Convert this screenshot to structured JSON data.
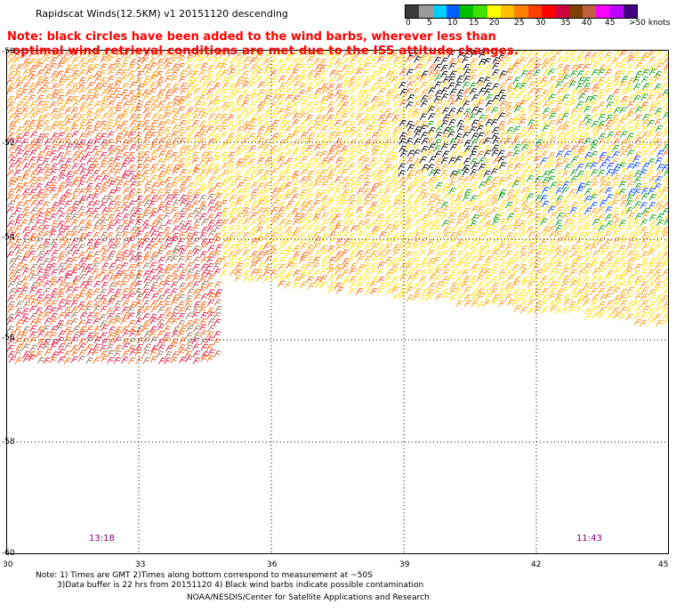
{
  "title": "Rapidscat Winds(12.5KM) v1 20151120 descending",
  "note": {
    "line1": "Note: black circles have been added to the wind barbs, wherever less than",
    "line2": "optimal wind retrieval conditions are met due to the ISS attitude changes."
  },
  "colorbar": {
    "colors": [
      "#3a3a3a",
      "#9a9a9a",
      "#00d0ff",
      "#0060ff",
      "#00c000",
      "#40e000",
      "#ffff00",
      "#ffc000",
      "#ff8000",
      "#ff4000",
      "#ff0000",
      "#d00040",
      "#804000",
      "#c06040",
      "#ff00ff",
      "#c000ff",
      "#400080"
    ],
    "labels": [
      "0",
      "5",
      "10",
      "15",
      "20",
      "25",
      "30",
      "35",
      "40",
      "45",
      ">50 knots"
    ]
  },
  "map": {
    "lon_range": [
      30,
      45
    ],
    "lat_range": [
      -60,
      -50
    ],
    "x_tick_labels": [
      "30",
      "33",
      "36",
      "39",
      "42",
      "45"
    ],
    "y_tick_labels": [
      "-50",
      "-52",
      "-54",
      "-56",
      "-58",
      "-60"
    ],
    "pass_times": [
      "13:18",
      "11:43"
    ],
    "barb_colors": {
      "speed_25_30": "#ffe000",
      "speed_30_35": "#ff9a00",
      "speed_35_40": "#ff5a00",
      "speed_40_45": "#e0103a",
      "speed_45_plus": "#9a6a4a",
      "speed_15_20": "#009a00",
      "speed_10_15": "#0040ff",
      "contaminated": "#000000"
    }
  },
  "footer": {
    "line1": "Note: 1) Times are GMT 2)Times along bottom correspond to measurement at ~50S",
    "line2": "3)Data buffer is 22 hrs from 20151120 4) Black wind barbs indicate possible contamination",
    "line3": "NOAA/NESDIS/Center for Satellite Applications and Research"
  }
}
